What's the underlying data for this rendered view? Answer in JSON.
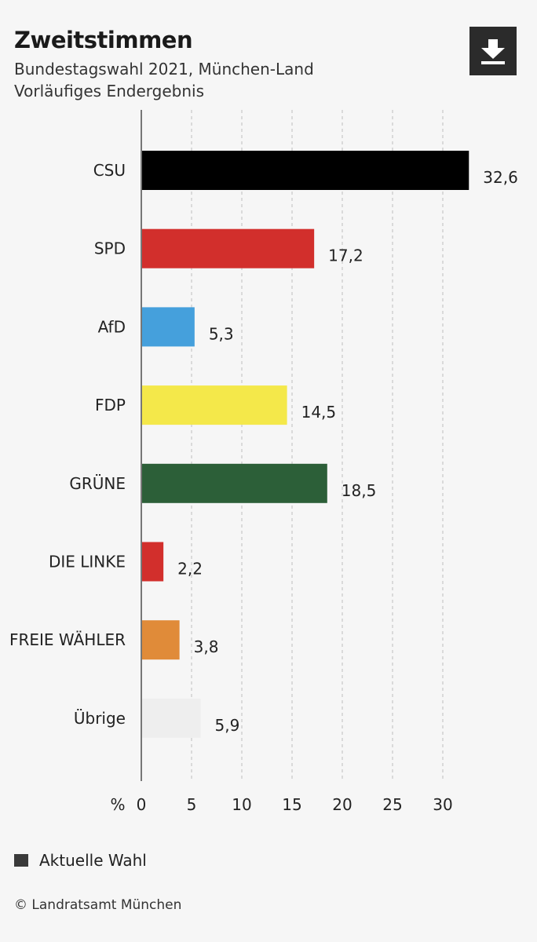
{
  "header": {
    "title": "Zweitstimmen",
    "subtitle_line1": "Bundestagswahl 2021, München-Land",
    "subtitle_line2": "Vorläufiges Endergebnis"
  },
  "download": {
    "icon": "download-icon"
  },
  "legend": {
    "label": "Aktuelle Wahl",
    "color": "#3a3a3a"
  },
  "credit": "© Landratsamt München",
  "chart_data": {
    "type": "bar",
    "orientation": "horizontal",
    "title": "Zweitstimmen",
    "subtitle": "Bundestagswahl 2021, München-Land · Vorläufiges Endergebnis",
    "xlabel": "%",
    "xlim": [
      0,
      33
    ],
    "x_ticks": [
      0,
      5,
      10,
      15,
      20,
      25,
      30
    ],
    "tick_labels": [
      "0",
      "5",
      "10",
      "15",
      "20",
      "25",
      "30"
    ],
    "unit_label": "%",
    "grid": "vertical dashed",
    "legend_position": "bottom-left",
    "categories": [
      "CSU",
      "SPD",
      "AfD",
      "FDP",
      "GRÜNE",
      "DIE LINKE",
      "FREIE WÄHLER",
      "Übrige"
    ],
    "values": [
      32.6,
      17.2,
      5.3,
      14.5,
      18.5,
      2.2,
      3.8,
      5.9
    ],
    "value_labels": [
      "32,6",
      "17,2",
      "5,3",
      "14,5",
      "18,5",
      "2,2",
      "3,8",
      "5,9"
    ],
    "colors": [
      "#000000",
      "#d22f2c",
      "#45a0dc",
      "#f4e84a",
      "#2c5f38",
      "#d22f2c",
      "#e08b39",
      "#eeeeee"
    ],
    "series": [
      {
        "name": "Aktuelle Wahl"
      }
    ]
  }
}
